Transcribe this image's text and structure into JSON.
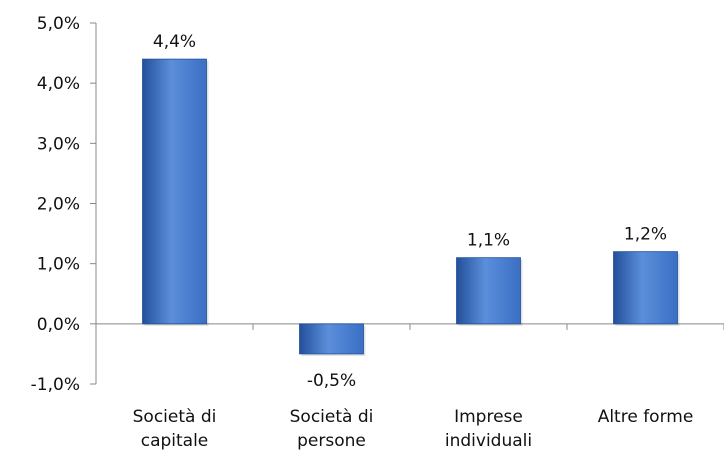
{
  "chart_data": {
    "type": "bar",
    "categories": [
      [
        "Società di",
        "capitale"
      ],
      [
        "Società di",
        "persone"
      ],
      [
        "Imprese",
        "individuali"
      ],
      [
        "Altre forme"
      ]
    ],
    "values": [
      4.4,
      -0.5,
      1.1,
      1.2
    ],
    "value_labels": [
      "4,4%",
      "-0,5%",
      "1,1%",
      "1,2%"
    ],
    "y_ticks": [
      -1.0,
      0.0,
      1.0,
      2.0,
      3.0,
      4.0,
      5.0
    ],
    "y_tick_labels": [
      "-1,0%",
      "0,0%",
      "1,0%",
      "2,0%",
      "3,0%",
      "4,0%",
      "5,0%"
    ],
    "ylim": [
      -1.0,
      5.0
    ],
    "grid": false,
    "bar_color": "#3A6FC4",
    "bar_color_dark": "#24509A",
    "bar_color_light": "#5B8FDB"
  }
}
